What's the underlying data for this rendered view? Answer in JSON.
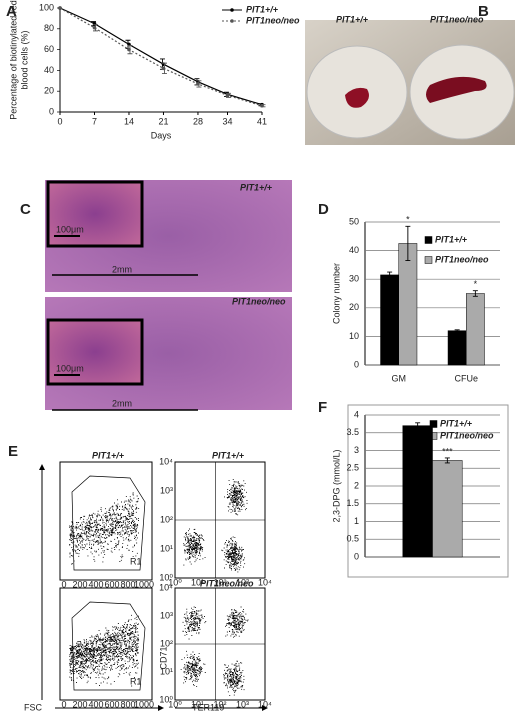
{
  "figure": {
    "panel_labels": [
      "A",
      "B",
      "C",
      "D",
      "E",
      "F"
    ],
    "panel_b": {
      "labels": [
        "PIT1+/+",
        "PIT1neo/neo"
      ]
    },
    "panel_c": {
      "top": {
        "genotype": "PIT1+/+",
        "inset_scale": "100μm",
        "scale": "2mm"
      },
      "bottom": {
        "genotype": "PIT1neo/neo",
        "inset_scale": "100μm",
        "scale": "2mm"
      }
    },
    "panel_e": {
      "top_left_title": "PIT1+/+",
      "top_right_title": "PIT1+/+",
      "bottom_right_title": "PIT1neo/neo",
      "x_label_left": "FSC",
      "y_label_right": "CD71",
      "x_label_right": "TER119",
      "gate": "R1",
      "fsc_ticks": [
        "0",
        "200",
        "400",
        "600",
        "800",
        "1000"
      ],
      "log_ticks": [
        "10⁰",
        "10¹",
        "10²",
        "10³",
        "10⁴"
      ]
    }
  },
  "chart_data": [
    {
      "type": "line",
      "xlabel": "Days",
      "ylabel": [
        "Percentage of biotinylated red",
        "blood cells (%)"
      ],
      "x": [
        0,
        7,
        14,
        21,
        28,
        34,
        41
      ],
      "xlim": [
        0,
        41
      ],
      "xticks": [
        0,
        7,
        14,
        21,
        28,
        34,
        41
      ],
      "ylim": [
        0,
        100
      ],
      "yticks": [
        0,
        20,
        40,
        60,
        80,
        100
      ],
      "grid": false,
      "legend": "upper right",
      "series": [
        {
          "name": "PIT1+/+",
          "color": "#000000",
          "dash": "solid",
          "values": [
            100,
            85,
            65,
            46,
            29,
            17,
            7
          ],
          "errors": [
            0,
            2,
            4,
            5,
            3,
            2,
            1
          ]
        },
        {
          "name": "PIT1neo/neo",
          "color": "#555555",
          "dash": "dotted",
          "values": [
            100,
            81,
            60,
            42,
            27,
            16,
            6
          ],
          "errors": [
            0,
            3,
            4,
            5,
            3,
            2,
            1
          ]
        }
      ]
    },
    {
      "type": "bar",
      "ylabel": "Colony number",
      "categories": [
        "GM",
        "CFUe"
      ],
      "ylim": [
        0,
        50
      ],
      "yticks": [
        0,
        10,
        20,
        30,
        40,
        50
      ],
      "grid": true,
      "legend": "upper right",
      "series": [
        {
          "name": "PIT1+/+",
          "color": "#000000",
          "values": [
            31.5,
            12
          ],
          "errors": [
            1,
            0.3
          ]
        },
        {
          "name": "PIT1neo/neo",
          "color": "#aaaaaa",
          "values": [
            42.5,
            25
          ],
          "errors": [
            6,
            1
          ],
          "significance": [
            "*",
            "*"
          ]
        }
      ]
    },
    {
      "type": "bar",
      "ylabel": "2,3-DPG (mmol/L)",
      "categories": [
        null
      ],
      "ylim": [
        0,
        4
      ],
      "yticks": [
        0,
        0.5,
        1,
        1.5,
        2,
        2.5,
        3,
        3.5,
        4
      ],
      "grid": true,
      "legend": "upper right",
      "series": [
        {
          "name": "PIT1+/+",
          "color": "#000000",
          "values": [
            3.7
          ],
          "errors": [
            0.08
          ]
        },
        {
          "name": "PIT1neo/neo",
          "color": "#aaaaaa",
          "values": [
            2.72
          ],
          "errors": [
            0.07
          ],
          "significance": [
            "***"
          ]
        }
      ]
    }
  ]
}
